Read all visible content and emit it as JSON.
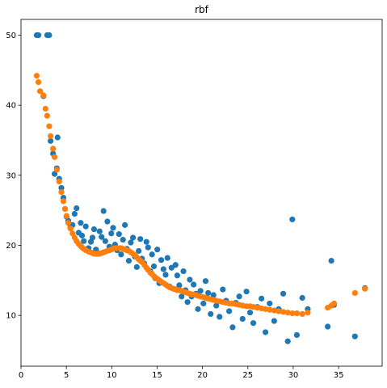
{
  "chart_data": {
    "type": "scatter",
    "title": "rbf",
    "xlabel": "",
    "ylabel": "",
    "xlim": [
      0,
      39.8
    ],
    "ylim": [
      2.75,
      52.25
    ],
    "xticks": [
      0,
      5,
      10,
      15,
      20,
      25,
      30,
      35
    ],
    "yticks": [
      10,
      20,
      30,
      40,
      50
    ],
    "grid": false,
    "series": [
      {
        "color": "#1f77b4",
        "kind": "data",
        "x": [
          1.73,
          1.92,
          2.47,
          2.88,
          3.11,
          3.26,
          3.53,
          3.7,
          3.95,
          4.21,
          4.03,
          4.45,
          4.67,
          4.85,
          5.02,
          5.21,
          5.45,
          5.68,
          5.91,
          6.12,
          6.36,
          6.58,
          6.72,
          6.92,
          7.14,
          7.44,
          7.7,
          7.88,
          8.05,
          8.26,
          8.47,
          8.66,
          8.88,
          9.1,
          9.29,
          9.52,
          9.74,
          9.95,
          10.15,
          10.36,
          10.59,
          10.8,
          11.03,
          11.24,
          11.45,
          11.66,
          11.88,
          12.1,
          12.34,
          12.55,
          12.76,
          12.97,
          13.15,
          13.33,
          13.6,
          13.82,
          14.0,
          14.25,
          14.44,
          14.65,
          14.8,
          15.02,
          15.24,
          15.45,
          15.7,
          15.94,
          16.14,
          16.38,
          16.59,
          16.8,
          17.03,
          17.22,
          17.44,
          17.7,
          17.9,
          18.13,
          18.35,
          18.6,
          18.8,
          19.02,
          19.28,
          19.5,
          19.78,
          20.1,
          20.34,
          20.62,
          20.9,
          21.21,
          21.52,
          21.88,
          22.24,
          22.6,
          22.94,
          23.32,
          23.68,
          24.05,
          24.42,
          24.85,
          25.24,
          25.6,
          26.04,
          26.5,
          26.94,
          27.4,
          27.9,
          28.4,
          28.9,
          29.4,
          29.9,
          30.4,
          31.0,
          31.6,
          33.8,
          34.2,
          34.5,
          36.8,
          37.9
        ],
        "y": [
          50.0,
          50.0,
          41.3,
          50.0,
          50.0,
          34.9,
          33.1,
          30.2,
          31.0,
          29.5,
          35.4,
          28.2,
          26.8,
          25.2,
          24.1,
          23.5,
          22.6,
          22.9,
          24.5,
          25.3,
          21.8,
          23.2,
          21.4,
          20.6,
          22.7,
          19.6,
          20.5,
          21.1,
          22.3,
          19.4,
          18.9,
          22.0,
          21.2,
          24.9,
          20.6,
          23.4,
          19.8,
          21.7,
          22.5,
          20.1,
          19.3,
          21.6,
          18.7,
          20.8,
          22.9,
          19.5,
          17.8,
          20.4,
          21.1,
          18.4,
          16.9,
          19.2,
          20.9,
          18.1,
          17.4,
          20.5,
          19.7,
          16.3,
          18.7,
          17.0,
          15.3,
          19.4,
          14.6,
          17.9,
          16.6,
          15.8,
          18.2,
          14.1,
          16.8,
          13.8,
          17.2,
          15.7,
          14.3,
          12.7,
          16.3,
          13.6,
          11.9,
          15.1,
          12.7,
          14.4,
          13.1,
          10.9,
          13.5,
          11.7,
          14.9,
          13.2,
          10.2,
          12.9,
          11.4,
          9.8,
          13.7,
          12.1,
          10.6,
          8.3,
          11.8,
          12.7,
          9.5,
          13.4,
          10.4,
          8.9,
          11.2,
          12.4,
          7.6,
          11.7,
          9.2,
          10.9,
          13.1,
          6.3,
          23.7,
          7.2,
          12.5,
          10.9,
          8.4,
          17.8,
          11.5,
          7.0,
          13.9
        ],
        "count_note": ""
      },
      {
        "color": "#ff7f0e",
        "kind": "fit",
        "x": [
          1.73,
          1.92,
          2.1,
          2.47,
          2.7,
          2.88,
          3.11,
          3.26,
          3.53,
          3.7,
          3.95,
          4.21,
          4.45,
          4.67,
          4.85,
          5.02,
          5.21,
          5.45,
          5.68,
          5.91,
          6.12,
          6.36,
          6.58,
          6.72,
          6.92,
          7.14,
          7.44,
          7.7,
          7.88,
          8.05,
          8.26,
          8.47,
          8.66,
          8.88,
          9.1,
          9.29,
          9.52,
          9.74,
          9.95,
          10.15,
          10.36,
          10.59,
          10.8,
          11.03,
          11.24,
          11.45,
          11.66,
          11.88,
          12.1,
          12.34,
          12.55,
          12.76,
          12.97,
          13.15,
          13.33,
          13.6,
          13.82,
          14.0,
          14.25,
          14.44,
          14.65,
          14.8,
          15.02,
          15.24,
          15.45,
          15.7,
          15.94,
          16.14,
          16.38,
          16.59,
          16.8,
          17.03,
          17.22,
          17.44,
          17.7,
          17.9,
          18.13,
          18.35,
          18.6,
          18.8,
          19.02,
          19.28,
          19.5,
          19.78,
          20.1,
          20.34,
          20.62,
          20.9,
          21.21,
          21.52,
          21.88,
          22.24,
          22.6,
          22.94,
          23.32,
          23.68,
          24.05,
          24.42,
          24.85,
          25.24,
          25.6,
          26.04,
          26.5,
          26.94,
          27.4,
          27.9,
          28.4,
          28.9,
          29.4,
          29.9,
          30.4,
          31.0,
          31.6,
          33.8,
          34.2,
          34.5,
          36.8,
          37.9
        ],
        "y": [
          44.2,
          43.3,
          42.0,
          41.4,
          39.5,
          38.5,
          37.0,
          35.6,
          33.8,
          32.6,
          30.8,
          29.1,
          27.6,
          26.3,
          25.2,
          24.2,
          23.2,
          22.4,
          21.7,
          21.1,
          20.6,
          20.2,
          19.9,
          19.7,
          19.5,
          19.3,
          19.1,
          19.0,
          18.9,
          18.8,
          18.8,
          18.8,
          18.8,
          18.9,
          19.0,
          19.1,
          19.2,
          19.3,
          19.4,
          19.5,
          19.6,
          19.6,
          19.6,
          19.6,
          19.5,
          19.4,
          19.3,
          19.2,
          19.0,
          18.8,
          18.6,
          18.3,
          18.0,
          17.8,
          17.6,
          17.2,
          16.8,
          16.5,
          16.1,
          15.9,
          15.6,
          15.4,
          15.2,
          15.0,
          14.8,
          14.6,
          14.4,
          14.2,
          14.0,
          13.9,
          13.8,
          13.7,
          13.6,
          13.6,
          13.5,
          13.4,
          13.3,
          13.2,
          13.1,
          13.0,
          13.0,
          12.9,
          12.8,
          12.7,
          12.6,
          12.5,
          12.4,
          12.3,
          12.2,
          12.1,
          12.0,
          11.9,
          11.8,
          11.7,
          11.7,
          11.6,
          11.5,
          11.4,
          11.3,
          11.3,
          11.2,
          11.1,
          11.0,
          10.9,
          10.8,
          10.7,
          10.6,
          10.5,
          10.4,
          10.3,
          10.3,
          10.2,
          10.4,
          11.1,
          11.4,
          11.7,
          13.2,
          13.8
        ]
      }
    ]
  }
}
